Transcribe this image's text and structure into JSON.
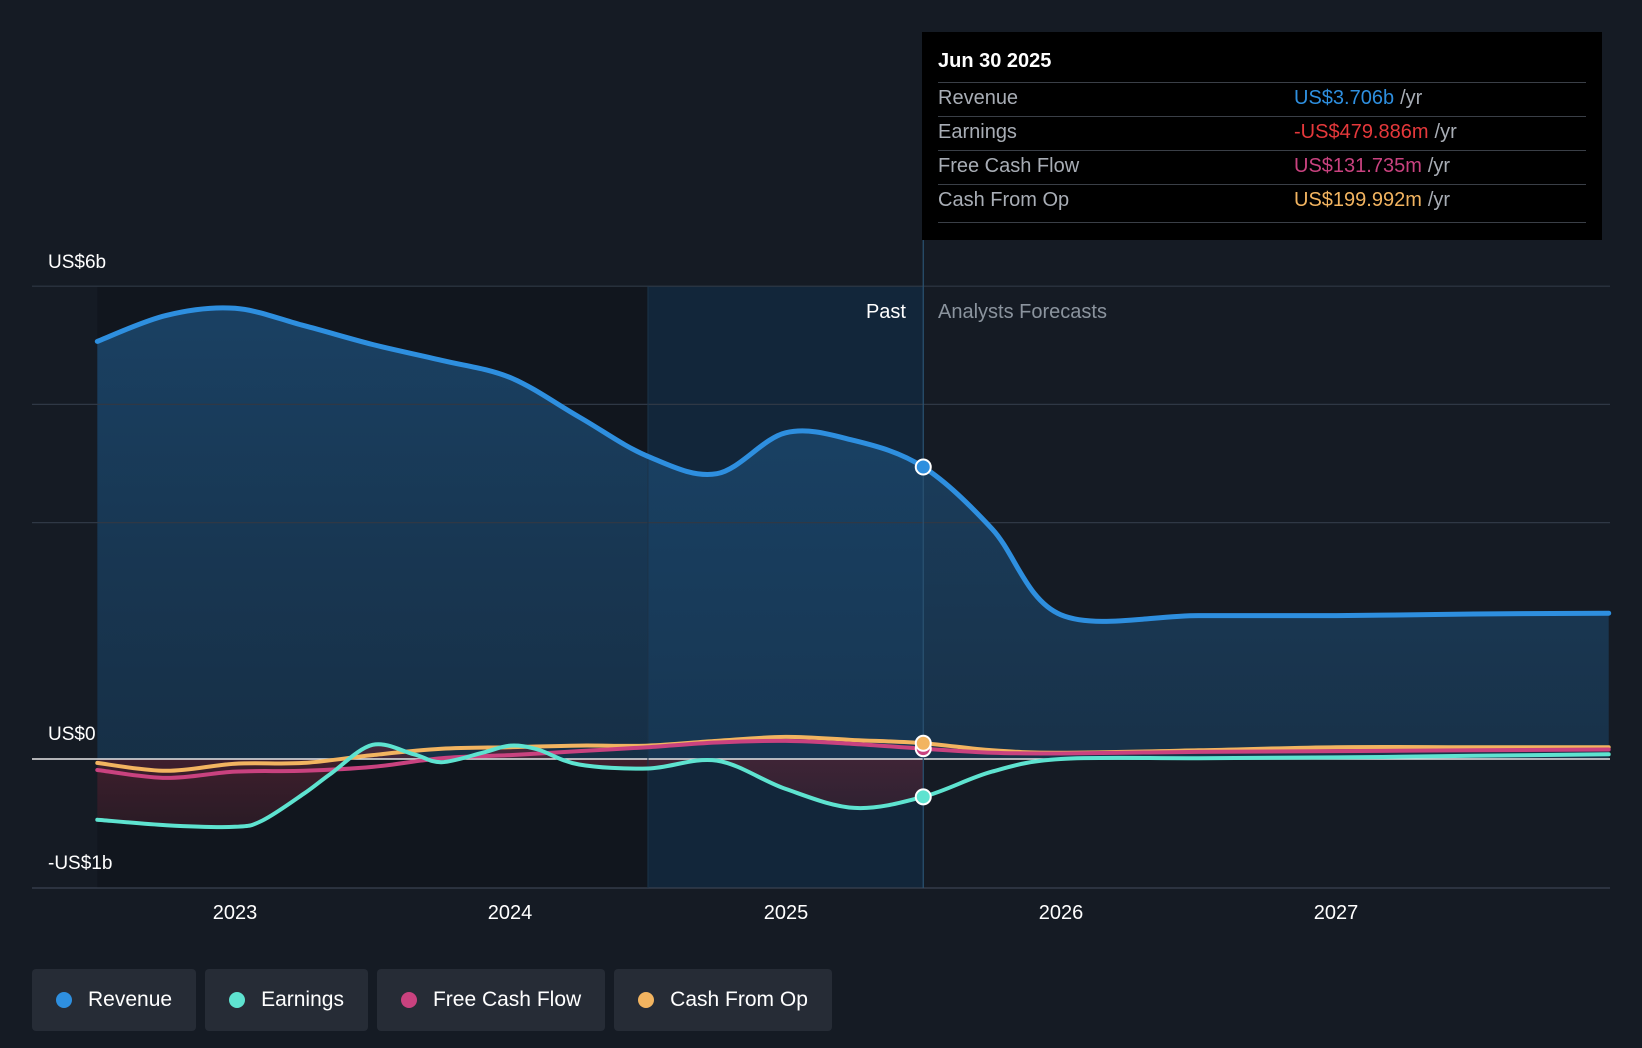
{
  "tooltip": {
    "date": "Jun 30 2025",
    "rows": [
      {
        "label": "Revenue",
        "value": "US$3.706b",
        "unit": "/yr",
        "color": "#2e8fdf"
      },
      {
        "label": "Earnings",
        "value": "-US$479.886m",
        "unit": "/yr",
        "color": "#e5383b"
      },
      {
        "label": "Free Cash Flow",
        "value": "US$131.735m",
        "unit": "/yr",
        "color": "#c9427f"
      },
      {
        "label": "Cash From Op",
        "value": "US$199.992m",
        "unit": "/yr",
        "color": "#f2b460"
      }
    ]
  },
  "regions": {
    "past": "Past",
    "forecast": "Analysts Forecasts"
  },
  "colors": {
    "background": "#151b24",
    "revenue": "#2e8fdf",
    "earnings": "#5ee3d0",
    "free_cash_flow": "#c9427f",
    "cash_from_op": "#f2b460"
  },
  "chart_data": {
    "type": "line",
    "title": "",
    "xlabel": "",
    "ylabel": "",
    "y_tick_labels": [
      "US$6b",
      "US$0",
      "-US$1b"
    ],
    "y_ticks": [
      6,
      0,
      -1
    ],
    "x_tick_labels": [
      "2023",
      "2024",
      "2025",
      "2026",
      "2027"
    ],
    "x_ticks": [
      2023.0,
      2024.0,
      2025.0,
      2026.0,
      2027.0
    ],
    "xlim": [
      2022.25,
      2027.99
    ],
    "ylim": [
      -1.5,
      6.0
    ],
    "gridlines_y": [
      6.0,
      4.5,
      3.0,
      0.0
    ],
    "past_shade_start": 2024.5,
    "forecast_start": 2025.5,
    "legend_position": "bottom",
    "series": [
      {
        "name": "Revenue",
        "key": "revenue",
        "x": [
          2022.5,
          2022.75,
          2023.0,
          2023.25,
          2023.5,
          2023.75,
          2024.0,
          2024.25,
          2024.5,
          2024.75,
          2025.0,
          2025.25,
          2025.5,
          2025.75,
          2026.0,
          2026.5,
          2027.0,
          2027.5,
          2027.99
        ],
        "y": [
          5.3,
          5.63,
          5.72,
          5.5,
          5.26,
          5.06,
          4.84,
          4.34,
          3.84,
          3.62,
          4.14,
          4.04,
          3.706,
          2.92,
          1.83,
          1.82,
          1.82,
          1.84,
          1.85
        ]
      },
      {
        "name": "Earnings",
        "key": "earnings",
        "x": [
          2022.5,
          2022.75,
          2023.0,
          2023.1,
          2023.25,
          2023.35,
          2023.5,
          2023.65,
          2023.75,
          2023.9,
          2024.0,
          2024.1,
          2024.25,
          2024.5,
          2024.75,
          2025.0,
          2025.25,
          2025.5,
          2025.75,
          2026.0,
          2026.5,
          2027.0,
          2027.5,
          2027.99
        ],
        "y": [
          -0.77,
          -0.84,
          -0.86,
          -0.78,
          -0.44,
          -0.18,
          0.18,
          0.06,
          -0.04,
          0.08,
          0.17,
          0.12,
          -0.07,
          -0.12,
          -0.02,
          -0.38,
          -0.62,
          -0.48,
          -0.16,
          0.0,
          0.01,
          0.02,
          0.04,
          0.06
        ]
      },
      {
        "name": "Free Cash Flow",
        "key": "free_cash_flow",
        "x": [
          2022.5,
          2022.75,
          2023.0,
          2023.25,
          2023.5,
          2023.75,
          2024.0,
          2024.25,
          2024.5,
          2024.75,
          2025.0,
          2025.25,
          2025.5,
          2025.75,
          2026.0,
          2026.5,
          2027.0,
          2027.5,
          2027.99
        ],
        "y": [
          -0.14,
          -0.24,
          -0.16,
          -0.15,
          -0.1,
          0.01,
          0.05,
          0.1,
          0.15,
          0.21,
          0.23,
          0.19,
          0.131,
          0.08,
          0.07,
          0.09,
          0.1,
          0.11,
          0.12
        ]
      },
      {
        "name": "Cash From Op",
        "key": "cash_from_op",
        "x": [
          2022.5,
          2022.75,
          2023.0,
          2023.25,
          2023.5,
          2023.75,
          2024.0,
          2024.25,
          2024.5,
          2024.75,
          2025.0,
          2025.25,
          2025.5,
          2025.75,
          2026.0,
          2026.5,
          2027.0,
          2027.5,
          2027.99
        ],
        "y": [
          -0.05,
          -0.15,
          -0.06,
          -0.05,
          0.05,
          0.13,
          0.15,
          0.17,
          0.17,
          0.23,
          0.28,
          0.24,
          0.2,
          0.11,
          0.08,
          0.11,
          0.15,
          0.15,
          0.15
        ]
      }
    ],
    "highlight_points": [
      {
        "series": "revenue",
        "x": 2025.5,
        "y": 3.706
      },
      {
        "series": "earnings",
        "x": 2025.5,
        "y": -0.48
      },
      {
        "series": "free_cash_flow",
        "x": 2025.5,
        "y": 0.131
      },
      {
        "series": "cash_from_op",
        "x": 2025.5,
        "y": 0.2
      }
    ]
  },
  "legend": [
    {
      "label": "Revenue",
      "key": "revenue"
    },
    {
      "label": "Earnings",
      "key": "earnings"
    },
    {
      "label": "Free Cash Flow",
      "key": "free_cash_flow"
    },
    {
      "label": "Cash From Op",
      "key": "cash_from_op"
    }
  ]
}
